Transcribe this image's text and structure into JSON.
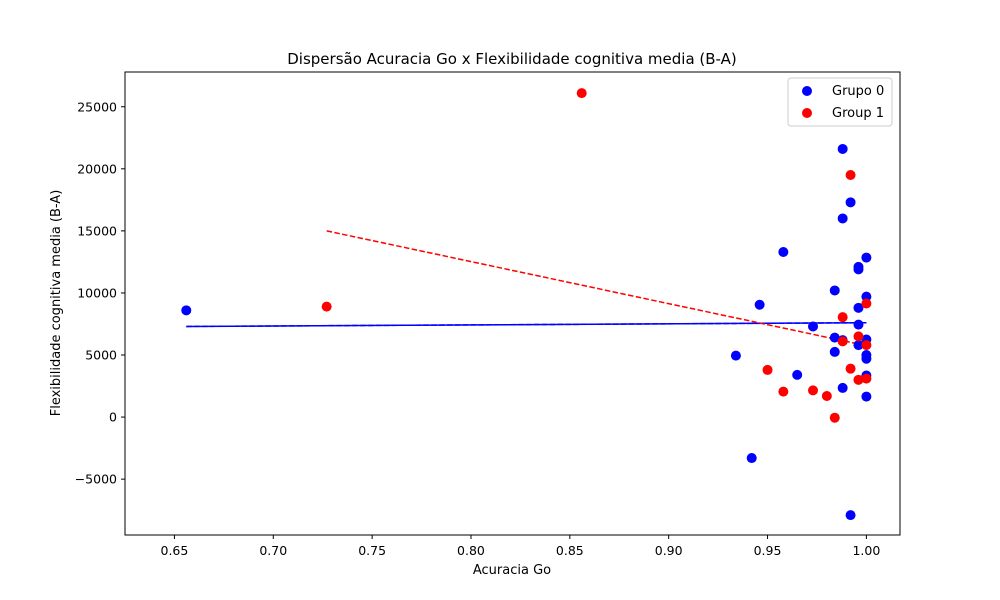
{
  "chart_data": {
    "type": "scatter",
    "title": "Dispersão Acuracia Go x Flexibilidade cognitiva media (B-A)",
    "xlabel": "Acuracia Go",
    "ylabel": "Flexibilidade cognitiva media (B-A)",
    "xlim": [
      0.625,
      1.017
    ],
    "ylim": [
      -9500,
      27800
    ],
    "xticks": [
      0.65,
      0.7,
      0.75,
      0.8,
      0.85,
      0.9,
      0.95,
      1.0
    ],
    "xtick_labels": [
      "0.65",
      "0.70",
      "0.75",
      "0.80",
      "0.85",
      "0.90",
      "0.95",
      "1.00"
    ],
    "yticks": [
      -5000,
      0,
      5000,
      10000,
      15000,
      20000,
      25000
    ],
    "ytick_labels": [
      "−5000",
      "0",
      "5000",
      "10000",
      "15000",
      "20000",
      "25000"
    ],
    "grid": false,
    "legend_position": "top-right",
    "series": [
      {
        "name": "Grupo 0",
        "color": "#0000ff",
        "points": [
          [
            0.656,
            8600
          ],
          [
            0.934,
            4950
          ],
          [
            0.942,
            -3300
          ],
          [
            0.946,
            9050
          ],
          [
            0.958,
            13300
          ],
          [
            0.965,
            3400
          ],
          [
            0.973,
            7300
          ],
          [
            0.984,
            10200
          ],
          [
            0.984,
            6400
          ],
          [
            0.984,
            5250
          ],
          [
            0.988,
            21600
          ],
          [
            0.988,
            16000
          ],
          [
            0.988,
            6200
          ],
          [
            0.988,
            2350
          ],
          [
            0.992,
            17300
          ],
          [
            0.992,
            -7900
          ],
          [
            0.996,
            12100
          ],
          [
            0.996,
            11900
          ],
          [
            0.996,
            8800
          ],
          [
            0.996,
            7450
          ],
          [
            0.996,
            5800
          ],
          [
            1.0,
            12850
          ],
          [
            1.0,
            9700
          ],
          [
            1.0,
            6250
          ],
          [
            1.0,
            5000
          ],
          [
            1.0,
            4700
          ],
          [
            1.0,
            3350
          ],
          [
            1.0,
            1650
          ]
        ],
        "trend": {
          "x": [
            0.656,
            1.0
          ],
          "y": [
            7300,
            7600
          ]
        }
      },
      {
        "name": "Group 1",
        "color": "#ff0000",
        "points": [
          [
            0.727,
            8900
          ],
          [
            0.856,
            26100
          ],
          [
            0.95,
            3800
          ],
          [
            0.958,
            2050
          ],
          [
            0.973,
            2150
          ],
          [
            0.98,
            1700
          ],
          [
            0.984,
            -50
          ],
          [
            0.988,
            8050
          ],
          [
            0.988,
            6100
          ],
          [
            0.992,
            19500
          ],
          [
            0.992,
            3900
          ],
          [
            0.996,
            6500
          ],
          [
            0.996,
            3000
          ],
          [
            1.0,
            9150
          ],
          [
            1.0,
            5800
          ],
          [
            1.0,
            3100
          ]
        ],
        "trend": {
          "x": [
            0.727,
            1.0
          ],
          "y": [
            15000,
            5750
          ]
        }
      }
    ]
  }
}
